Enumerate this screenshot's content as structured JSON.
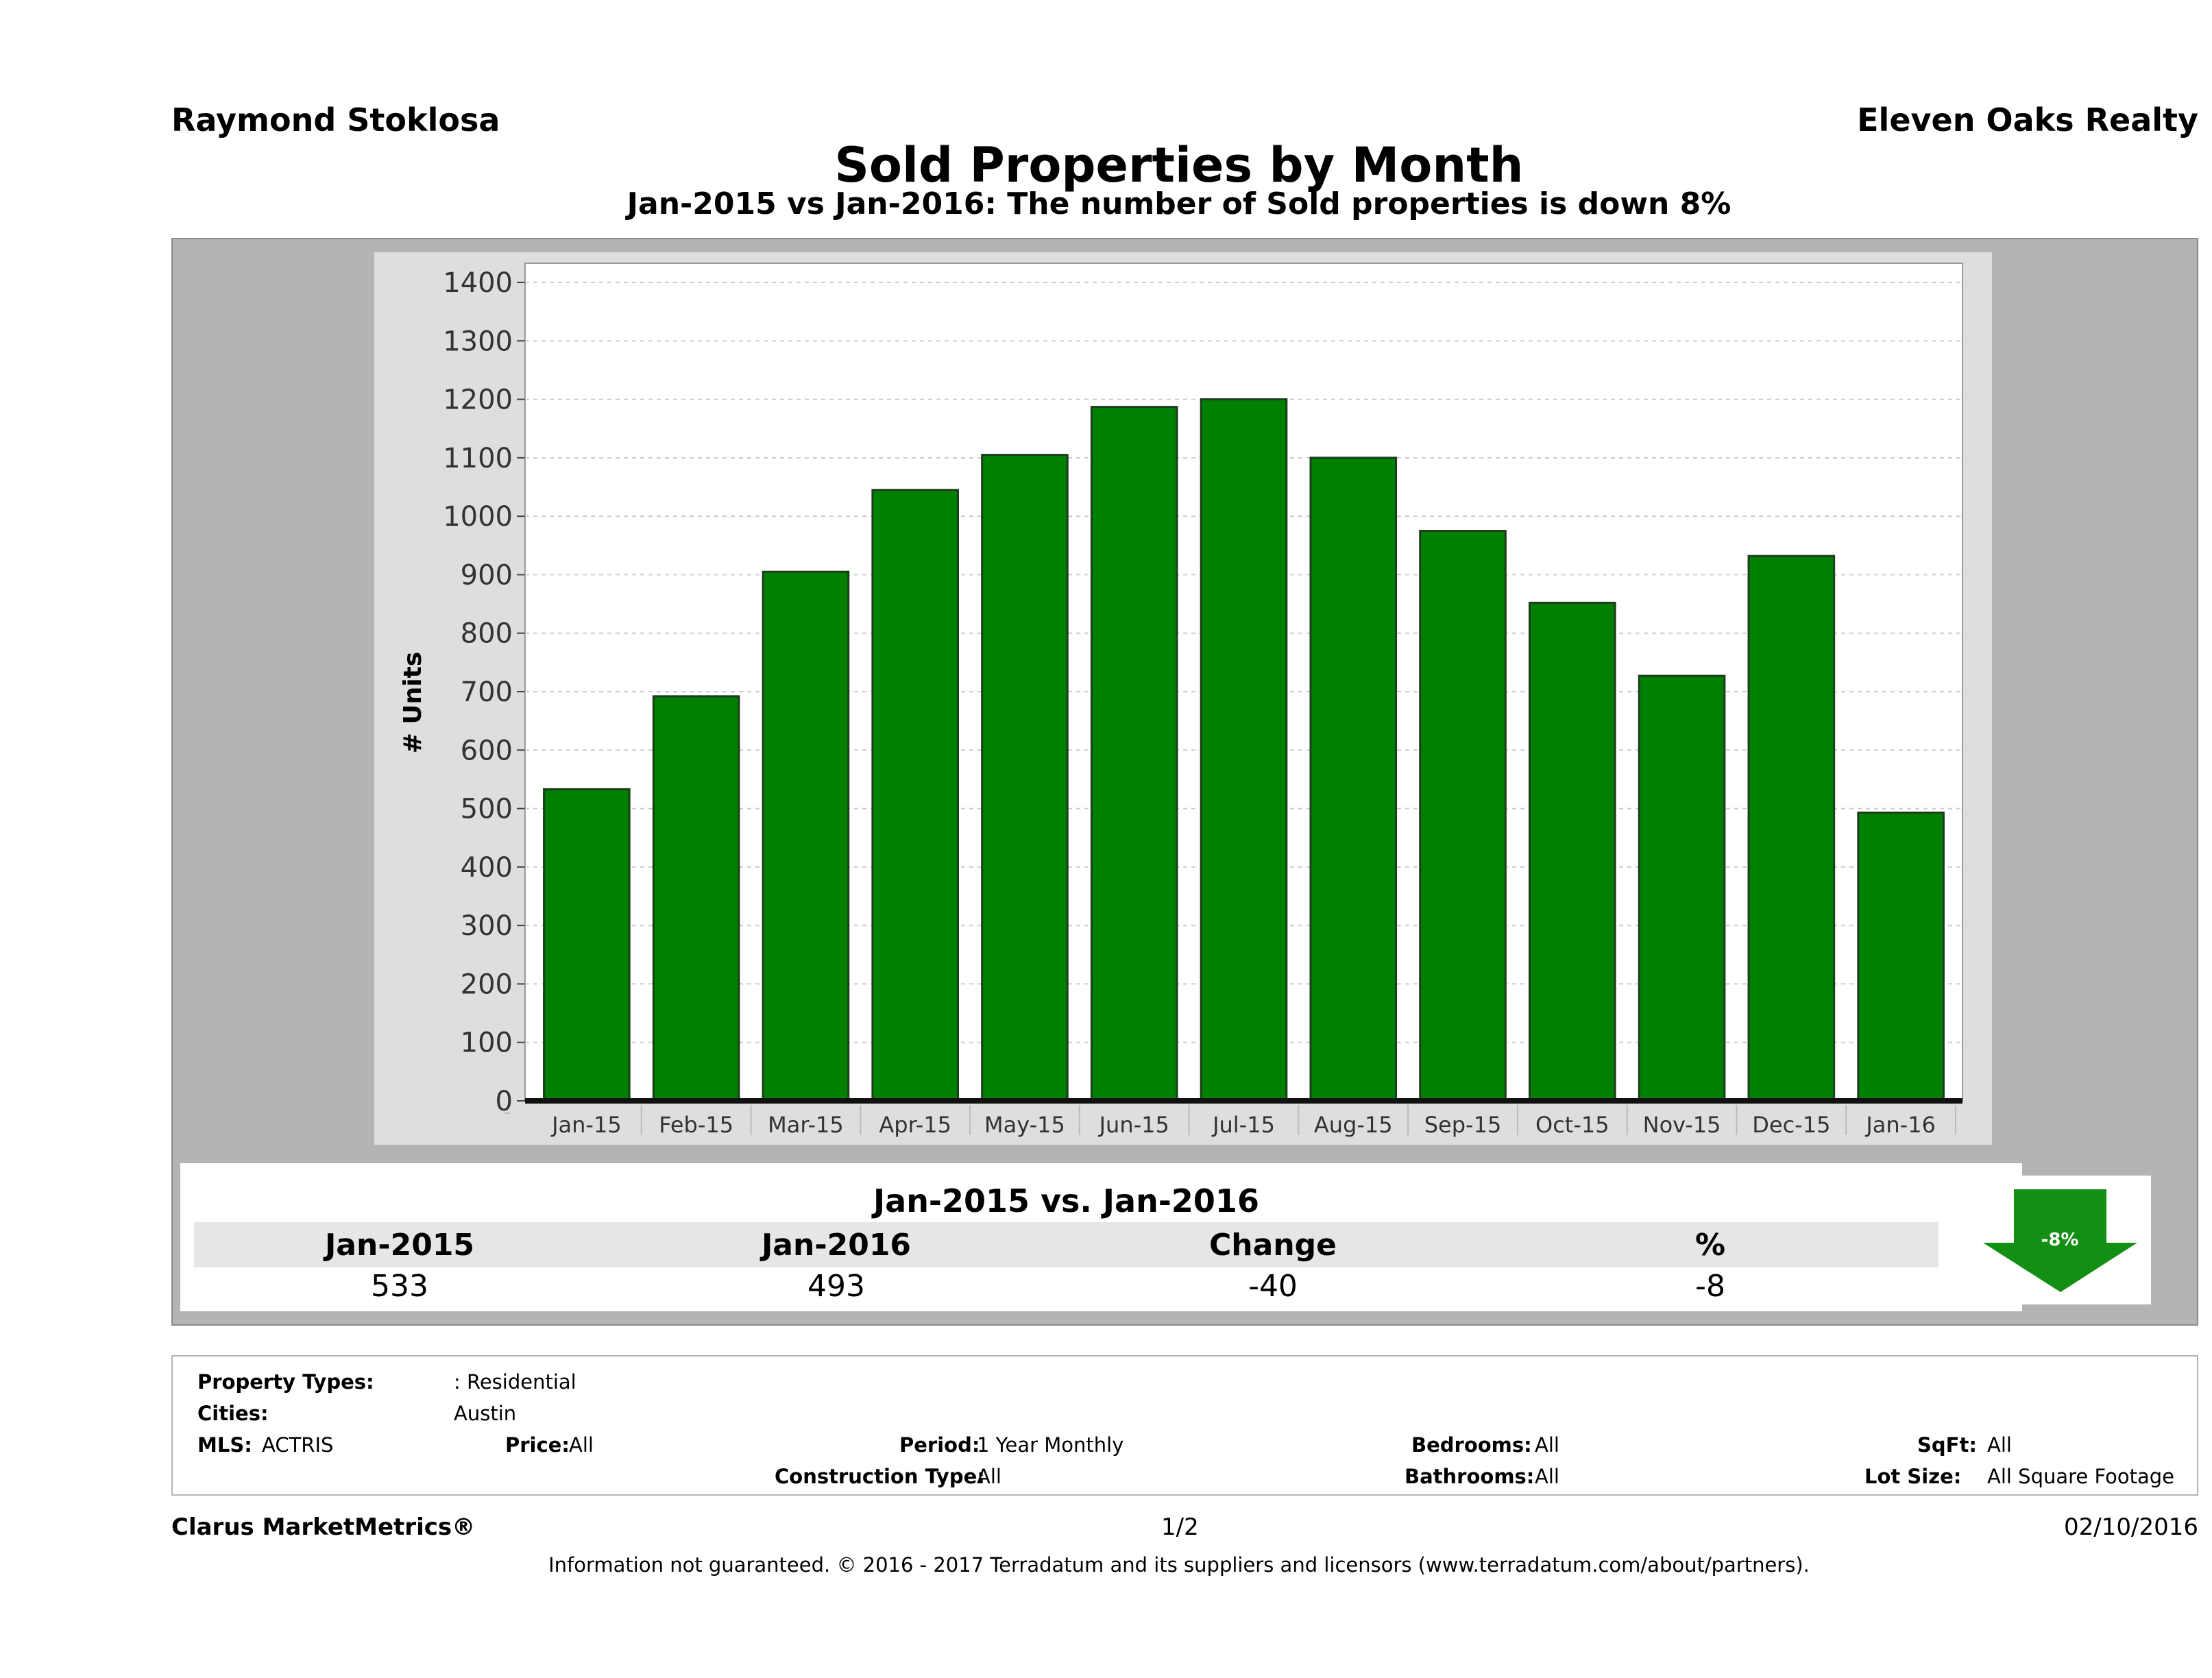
{
  "header": {
    "agent": "Raymond Stoklosa",
    "company": "Eleven Oaks Realty",
    "title": "Sold Properties by Month",
    "subtitle": "Jan-2015 vs Jan-2016: The number of Sold  properties is down 8%"
  },
  "chart_data": {
    "type": "bar",
    "categories": [
      "Jan-15",
      "Feb-15",
      "Mar-15",
      "Apr-15",
      "May-15",
      "Jun-15",
      "Jul-15",
      "Aug-15",
      "Sep-15",
      "Oct-15",
      "Nov-15",
      "Dec-15",
      "Jan-16"
    ],
    "values": [
      533,
      692,
      905,
      1045,
      1105,
      1187,
      1200,
      1100,
      975,
      852,
      727,
      932,
      493
    ],
    "ylabel": "# Units",
    "xlabel": "",
    "ylim": [
      0,
      1400
    ],
    "yticks": [
      0,
      100,
      200,
      300,
      400,
      500,
      600,
      700,
      800,
      900,
      1000,
      1100,
      1200,
      1300,
      1400
    ],
    "bar_color": "#008000",
    "grid": true
  },
  "summary": {
    "title": "Jan-2015 vs. Jan-2016",
    "headers": [
      "Jan-2015",
      "Jan-2016",
      "Change",
      "%"
    ],
    "values": [
      "533",
      "493",
      "-40",
      "-8"
    ],
    "arrow_label": "-8%",
    "arrow_color": "#138f13"
  },
  "details": {
    "property_types_label": "Property Types:",
    "property_types_value": ": Residential",
    "cities_label": "Cities:",
    "cities_value": "Austin",
    "mls_label": "MLS:",
    "mls_value": "ACTRIS",
    "price_label": "Price:",
    "price_value": "All",
    "period_label": "Period:",
    "period_value": "1 Year Monthly",
    "bedrooms_label": "Bedrooms:",
    "bedrooms_value": "All",
    "sqft_label": "SqFt:",
    "sqft_value": "All",
    "construction_label": "Construction Type:",
    "construction_value": "All",
    "bathrooms_label": "Bathrooms:",
    "bathrooms_value": "All",
    "lot_label": "Lot Size:",
    "lot_value": "All Square Footage"
  },
  "footer": {
    "brand": "Clarus MarketMetrics®",
    "page": "1/2",
    "date": "02/10/2016",
    "disclaimer": "Information not guaranteed. © 2016 - 2017 Terradatum and its suppliers and licensors (www.terradatum.com/about/partners)."
  }
}
